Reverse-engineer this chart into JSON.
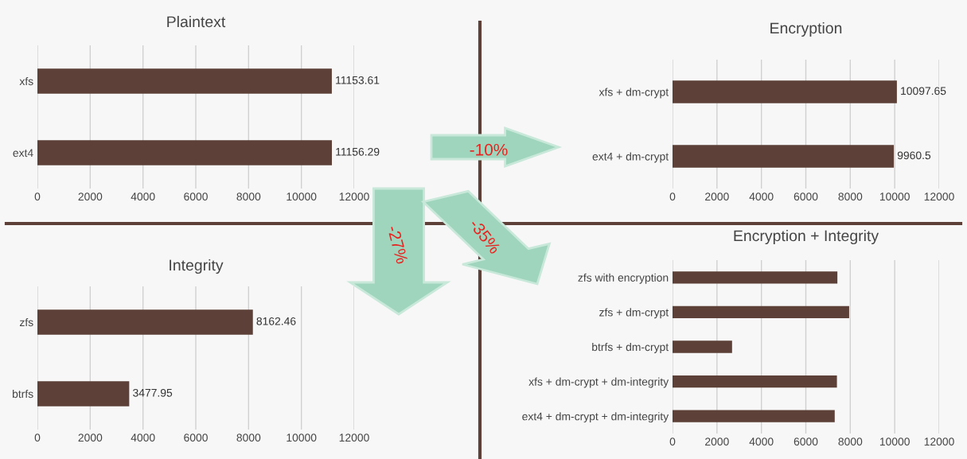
{
  "chart_data": [
    {
      "type": "bar",
      "orientation": "horizontal",
      "title": "Plaintext",
      "categories": [
        "xfs",
        "ext4"
      ],
      "values": [
        11153.61,
        11156.29
      ],
      "color": "#5d4037",
      "data_labels": true,
      "xlim": [
        0,
        12000
      ],
      "xticks": [
        0,
        2000,
        4000,
        6000,
        8000,
        10000,
        12000
      ],
      "grid": "x"
    },
    {
      "type": "bar",
      "orientation": "horizontal",
      "title": "Encryption",
      "categories": [
        "xfs + dm-crypt",
        "ext4 + dm-crypt"
      ],
      "values": [
        10097.65,
        9960.5
      ],
      "color": "#5d4037",
      "data_labels": true,
      "xlim": [
        0,
        12000
      ],
      "xticks": [
        0,
        2000,
        4000,
        6000,
        8000,
        10000,
        12000
      ],
      "grid": "x",
      "annotations": [
        "-10%"
      ]
    },
    {
      "type": "bar",
      "orientation": "horizontal",
      "title": "Integrity",
      "categories": [
        "zfs",
        "btrfs"
      ],
      "values": [
        8162.46,
        3477.95
      ],
      "color": "#5d4037",
      "data_labels": true,
      "xlim": [
        0,
        12000
      ],
      "xticks": [
        0,
        2000,
        4000,
        6000,
        8000,
        10000,
        12000
      ],
      "grid": "x",
      "annotations": [
        "-27%"
      ]
    },
    {
      "type": "bar",
      "orientation": "horizontal",
      "title": "Encryption + Integrity",
      "categories": [
        "zfs with encryption",
        "zfs + dm-crypt",
        "btrfs + dm-crypt",
        "xfs + dm-crypt + dm-integrity",
        "ext4 + dm-crypt + dm-integrity"
      ],
      "values": [
        7420,
        7950,
        2680,
        7400,
        7300
      ],
      "color": "#5d4037",
      "xlim": [
        0,
        12000
      ],
      "xticks": [
        0,
        2000,
        4000,
        6000,
        8000,
        10000,
        12000
      ],
      "grid": "x",
      "annotations": [
        "-35%"
      ]
    }
  ]
}
